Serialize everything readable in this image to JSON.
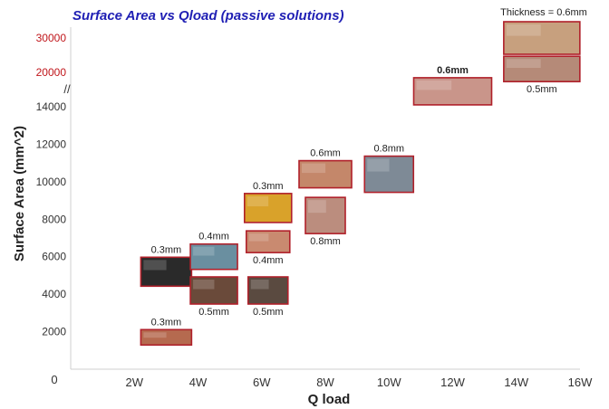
{
  "chart_data": {
    "type": "scatter",
    "title": "Surface Area vs Qload (passive solutions)",
    "xlabel": "Q load",
    "ylabel": "Surface  Area (mm^2)",
    "x_origin_label": "0",
    "x_tick_values": [
      2,
      4,
      6,
      8,
      10,
      12,
      14,
      16
    ],
    "x_tick_labels": [
      "2W",
      "4W",
      "6W",
      "8W",
      "10W",
      "12W",
      "14W",
      "16W"
    ],
    "xlim": [
      0,
      16
    ],
    "y_lower_ticks": [
      2000,
      4000,
      6000,
      8000,
      10000,
      12000,
      14000
    ],
    "y_lower_tick_labels": [
      "2000",
      "4000",
      "6000",
      "8000",
      "10000",
      "12000",
      "14000"
    ],
    "y_upper_ticks": [
      20000,
      30000
    ],
    "y_upper_tick_labels": [
      "20000",
      "30000"
    ],
    "y_axis_break": "//",
    "ylim": [
      0,
      30000
    ],
    "grid": false,
    "legend_note": "Thickness = 0.6mm",
    "points": [
      {
        "x": 3,
        "y": 1700,
        "thickness": "0.3mm",
        "label_pos": "above",
        "color": "#b56a4f"
      },
      {
        "x": 3,
        "y": 5200,
        "thickness": "0.3mm",
        "label_pos": "above",
        "color": "#2a2a2a"
      },
      {
        "x": 4.5,
        "y": 6000,
        "thickness": "0.4mm",
        "label_pos": "above",
        "color": "#6a8fa0"
      },
      {
        "x": 4.5,
        "y": 4200,
        "thickness": "0.5mm",
        "label_pos": "below",
        "color": "#6a4a3a"
      },
      {
        "x": 6.2,
        "y": 8600,
        "thickness": "0.3mm",
        "label_pos": "above",
        "color": "#d9a22a"
      },
      {
        "x": 6.2,
        "y": 6800,
        "thickness": "0.4mm",
        "label_pos": "below",
        "color": "#c98a70"
      },
      {
        "x": 6.2,
        "y": 4200,
        "thickness": "0.5mm",
        "label_pos": "below",
        "color": "#5a4a40"
      },
      {
        "x": 8,
        "y": 10400,
        "thickness": "0.6mm",
        "label_pos": "above",
        "color": "#c4876a"
      },
      {
        "x": 8,
        "y": 8200,
        "thickness": "0.8mm",
        "label_pos": "below",
        "color": "#bb8d7e"
      },
      {
        "x": 10,
        "y": 10400,
        "thickness": "0.8mm",
        "label_pos": "above",
        "color": "#7e8a96"
      },
      {
        "x": 12,
        "y": 14500,
        "thickness": "0.6mm",
        "label_pos": "above",
        "color": "#c9958a"
      },
      {
        "x": 14.8,
        "y": 30000,
        "thickness": "",
        "label_pos": "none",
        "color": "#c7a07e"
      },
      {
        "x": 14.8,
        "y": 21000,
        "thickness": "0.5mm",
        "label_pos": "below",
        "color": "#b58a78"
      }
    ]
  }
}
